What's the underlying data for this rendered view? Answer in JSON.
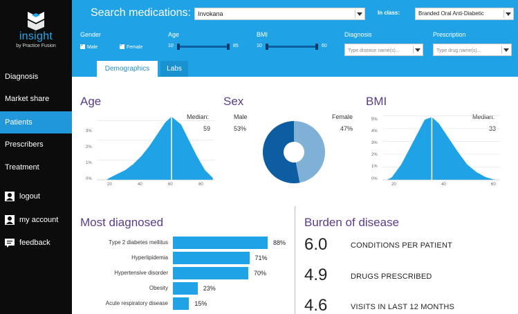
{
  "sidebar": {
    "logo": {
      "brand": "insight",
      "by": "by Practice Fusion"
    },
    "nav": [
      {
        "label": "Diagnosis",
        "active": false
      },
      {
        "label": "Market share",
        "active": false
      },
      {
        "label": "Patients",
        "active": true
      },
      {
        "label": "Prescribers",
        "active": false
      },
      {
        "label": "Treatment",
        "active": false
      }
    ],
    "utility": [
      {
        "label": "logout",
        "icon": "user-icon"
      },
      {
        "label": "my account",
        "icon": "user-icon"
      },
      {
        "label": "feedback",
        "icon": "chat-icon"
      }
    ]
  },
  "header": {
    "search_label": "Search medications:",
    "search_value": "Invokana",
    "class_label": "In class:",
    "class_value": "Branded Oral Anti-Diabetic",
    "filters": {
      "gender": {
        "label": "Gender",
        "male": "Male",
        "female": "Female"
      },
      "age": {
        "label": "Age",
        "min": "10",
        "max": "85"
      },
      "bmi": {
        "label": "BMI",
        "min": "10",
        "max": "60"
      },
      "diagnosis": {
        "label": "Diagnosis",
        "placeholder": "Type disease name(s)..."
      },
      "prescription": {
        "label": "Prescription",
        "placeholder": "Type drug name(s)..."
      }
    },
    "tabs": [
      {
        "label": "Demographics",
        "active": true
      },
      {
        "label": "Labs",
        "active": false
      }
    ]
  },
  "age": {
    "title": "Age",
    "median_label": "Median:",
    "median": "59",
    "y_ticks": [
      "3%",
      "2%",
      "1%",
      "0%"
    ],
    "x_ticks": [
      "20",
      "40",
      "60",
      "80"
    ]
  },
  "sex": {
    "title": "Sex",
    "male_label": "Male",
    "male_pct": "53%",
    "female_label": "Female",
    "female_pct": "47%"
  },
  "bmi": {
    "title": "BMI",
    "median_label": "Median:",
    "median": "33",
    "y_ticks": [
      "5%",
      "4%",
      "3%",
      "2%",
      "1%",
      "0%"
    ],
    "x_ticks": [
      "20",
      "40",
      "60"
    ]
  },
  "most_diagnosed": {
    "title": "Most diagnosed",
    "items": [
      {
        "label": "Type 2 diabetes mellitus",
        "pct": "88%",
        "value": 88
      },
      {
        "label": "Hyperlipidemia",
        "pct": "71%",
        "value": 71
      },
      {
        "label": "Hypertensive disorder",
        "pct": "70%",
        "value": 70
      },
      {
        "label": "Obesity",
        "pct": "23%",
        "value": 23
      },
      {
        "label": "Acute respiratory disease",
        "pct": "15%",
        "value": 15
      }
    ]
  },
  "burden": {
    "title": "Burden of disease",
    "items": [
      {
        "value": "6.0",
        "label": "CONDITIONS PER PATIENT"
      },
      {
        "value": "4.9",
        "label": "DRUGS PRESCRIBED"
      },
      {
        "value": "4.6",
        "label": "VISITS IN LAST 12 MONTHS"
      }
    ]
  },
  "colors": {
    "accent": "#1fa3e6",
    "bar": "#1fa3e6",
    "male": "#0d5da3",
    "female": "#7fb0d6",
    "title": "#5a3d8a"
  },
  "chart_data": [
    {
      "type": "area",
      "title": "Age",
      "x": [
        18,
        20,
        25,
        30,
        35,
        40,
        45,
        50,
        55,
        59,
        65,
        70,
        75,
        80,
        85
      ],
      "y": [
        0.0,
        0.1,
        0.3,
        0.5,
        0.8,
        1.2,
        1.7,
        2.3,
        2.9,
        3.2,
        2.8,
        2.0,
        1.2,
        0.5,
        0.1
      ],
      "xlim": [
        12,
        86
      ],
      "ylim": [
        0,
        3.5
      ],
      "median": 59,
      "ylabel_unit": "%"
    },
    {
      "type": "pie",
      "title": "Sex",
      "labels": [
        "Male",
        "Female"
      ],
      "values": [
        53,
        47
      ]
    },
    {
      "type": "area",
      "title": "BMI",
      "x": [
        14,
        16,
        20,
        24,
        28,
        30,
        33,
        36,
        40,
        44,
        48,
        52,
        56,
        60
      ],
      "y": [
        0.0,
        0.2,
        1.2,
        2.6,
        4.0,
        4.7,
        4.9,
        4.4,
        3.3,
        2.2,
        1.2,
        0.6,
        0.2,
        0.0
      ],
      "xlim": [
        12,
        62
      ],
      "ylim": [
        0,
        5.4
      ],
      "median": 33,
      "ylabel_unit": "%"
    },
    {
      "type": "bar",
      "title": "Most diagnosed",
      "categories": [
        "Type 2 diabetes mellitus",
        "Hyperlipidemia",
        "Hypertensive disorder",
        "Obesity",
        "Acute respiratory disease"
      ],
      "values": [
        88,
        71,
        70,
        23,
        15
      ]
    }
  ]
}
